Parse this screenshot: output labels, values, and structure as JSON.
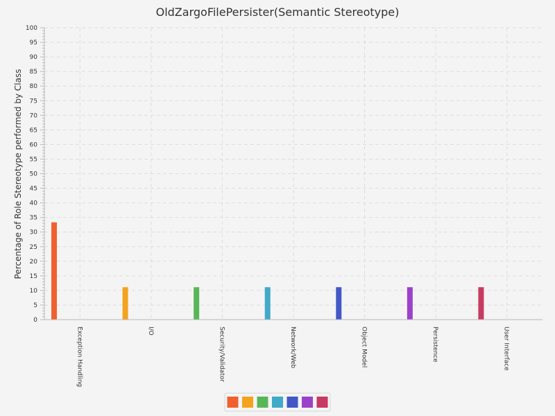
{
  "chart_data": {
    "type": "bar",
    "title": "OldZargoFilePersister(Semantic Stereotype)",
    "ylabel": "Percentage of Role Stereotype performed by Class",
    "xlabel": "",
    "ylim": [
      0,
      100
    ],
    "ytick_step": 5,
    "grid": true,
    "legend_position": "bottom-center",
    "categories": [
      "Exception Handling",
      "I/O",
      "Security/Validator",
      "Network/Web",
      "Object Model",
      "Persistence",
      "User Interface"
    ],
    "values": [
      33.33,
      11.11,
      11.11,
      11.11,
      11.11,
      11.11,
      11.11
    ],
    "bar_colors": [
      "#f0602f",
      "#f4a31e",
      "#57b757",
      "#41a9c9",
      "#4357c7",
      "#9c42c9",
      "#c73a61"
    ],
    "legend_colors": [
      "#f0602f",
      "#f4a31e",
      "#57b757",
      "#41a9c9",
      "#4357c7",
      "#9c42c9",
      "#c73a61"
    ]
  }
}
